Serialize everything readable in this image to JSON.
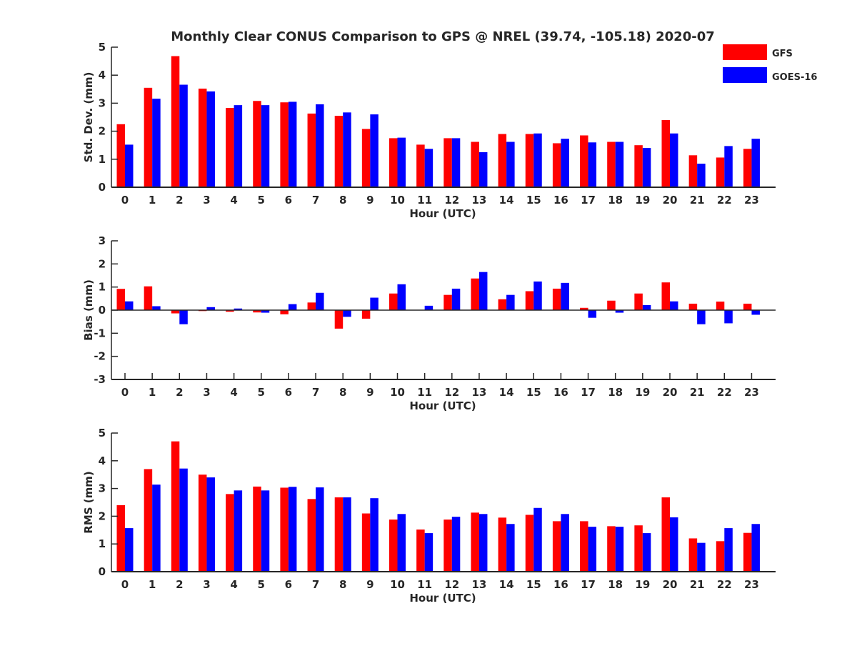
{
  "title": "Monthly Clear CONUS Comparison to GPS @ NREL (39.74, -105.18) 2020-07",
  "legend": [
    {
      "label": "GFS",
      "color": "#ff0000"
    },
    {
      "label": "GOES-16",
      "color": "#0000ff"
    }
  ],
  "chart_data": [
    {
      "type": "bar",
      "title": "Monthly Clear CONUS Comparison to GPS @ NREL (39.74, -105.18) 2020-07",
      "xlabel": "Hour (UTC)",
      "ylabel": "Std. Dev. (mm)",
      "ylim": [
        0,
        5
      ],
      "yticks": [
        0,
        1,
        2,
        3,
        4,
        5
      ],
      "categories": [
        "0",
        "1",
        "2",
        "3",
        "4",
        "5",
        "6",
        "7",
        "8",
        "9",
        "10",
        "11",
        "12",
        "13",
        "14",
        "15",
        "16",
        "17",
        "18",
        "19",
        "20",
        "21",
        "22",
        "23"
      ],
      "legend_position": "top-right",
      "series": [
        {
          "name": "GFS",
          "color": "#ff0000",
          "values": [
            2.25,
            3.55,
            4.68,
            3.52,
            2.83,
            3.08,
            3.03,
            2.63,
            2.55,
            2.08,
            1.75,
            1.52,
            1.75,
            1.62,
            1.9,
            1.9,
            1.57,
            1.85,
            1.62,
            1.5,
            2.4,
            1.14,
            1.06,
            1.37
          ]
        },
        {
          "name": "GOES-16",
          "color": "#0000ff",
          "values": [
            1.52,
            3.16,
            3.66,
            3.42,
            2.93,
            2.93,
            3.05,
            2.96,
            2.67,
            2.6,
            1.77,
            1.37,
            1.75,
            1.25,
            1.62,
            1.92,
            1.73,
            1.6,
            1.62,
            1.4,
            1.92,
            0.84,
            1.47,
            1.73
          ]
        }
      ]
    },
    {
      "type": "bar",
      "xlabel": "Hour (UTC)",
      "ylabel": "Bias (mm)",
      "ylim": [
        -3,
        3
      ],
      "yticks": [
        -3,
        -2,
        -1,
        0,
        1,
        2,
        3
      ],
      "categories": [
        "0",
        "1",
        "2",
        "3",
        "4",
        "5",
        "6",
        "7",
        "8",
        "9",
        "10",
        "11",
        "12",
        "13",
        "14",
        "15",
        "16",
        "17",
        "18",
        "19",
        "20",
        "21",
        "22",
        "23"
      ],
      "series": [
        {
          "name": "GFS",
          "color": "#ff0000",
          "values": [
            0.92,
            1.03,
            -0.14,
            -0.04,
            -0.07,
            -0.1,
            -0.18,
            0.33,
            -0.8,
            -0.37,
            0.72,
            0.0,
            0.66,
            1.37,
            0.47,
            0.82,
            0.93,
            0.1,
            0.41,
            0.72,
            1.2,
            0.28,
            0.37,
            0.28
          ]
        },
        {
          "name": "GOES-16",
          "color": "#0000ff",
          "values": [
            0.38,
            0.17,
            -0.61,
            0.13,
            0.07,
            -0.11,
            0.26,
            0.75,
            -0.29,
            0.54,
            1.12,
            0.19,
            0.93,
            1.65,
            0.66,
            1.24,
            1.18,
            -0.33,
            -0.11,
            0.22,
            0.38,
            -0.61,
            -0.57,
            -0.2
          ]
        }
      ]
    },
    {
      "type": "bar",
      "xlabel": "Hour (UTC)",
      "ylabel": "RMS (mm)",
      "ylim": [
        0,
        5
      ],
      "yticks": [
        0,
        1,
        2,
        3,
        4,
        5
      ],
      "categories": [
        "0",
        "1",
        "2",
        "3",
        "4",
        "5",
        "6",
        "7",
        "8",
        "9",
        "10",
        "11",
        "12",
        "13",
        "14",
        "15",
        "16",
        "17",
        "18",
        "19",
        "20",
        "21",
        "22",
        "23"
      ],
      "series": [
        {
          "name": "GFS",
          "color": "#ff0000",
          "values": [
            2.4,
            3.7,
            4.7,
            3.5,
            2.8,
            3.07,
            3.03,
            2.62,
            2.68,
            2.1,
            1.88,
            1.52,
            1.88,
            2.13,
            1.95,
            2.05,
            1.82,
            1.82,
            1.64,
            1.67,
            2.68,
            1.2,
            1.1,
            1.4
          ]
        },
        {
          "name": "GOES-16",
          "color": "#0000ff",
          "values": [
            1.57,
            3.14,
            3.72,
            3.4,
            2.93,
            2.93,
            3.06,
            3.04,
            2.68,
            2.65,
            2.08,
            1.39,
            1.98,
            2.08,
            1.72,
            2.3,
            2.08,
            1.62,
            1.62,
            1.39,
            1.96,
            1.04,
            1.57,
            1.72
          ]
        }
      ]
    }
  ]
}
